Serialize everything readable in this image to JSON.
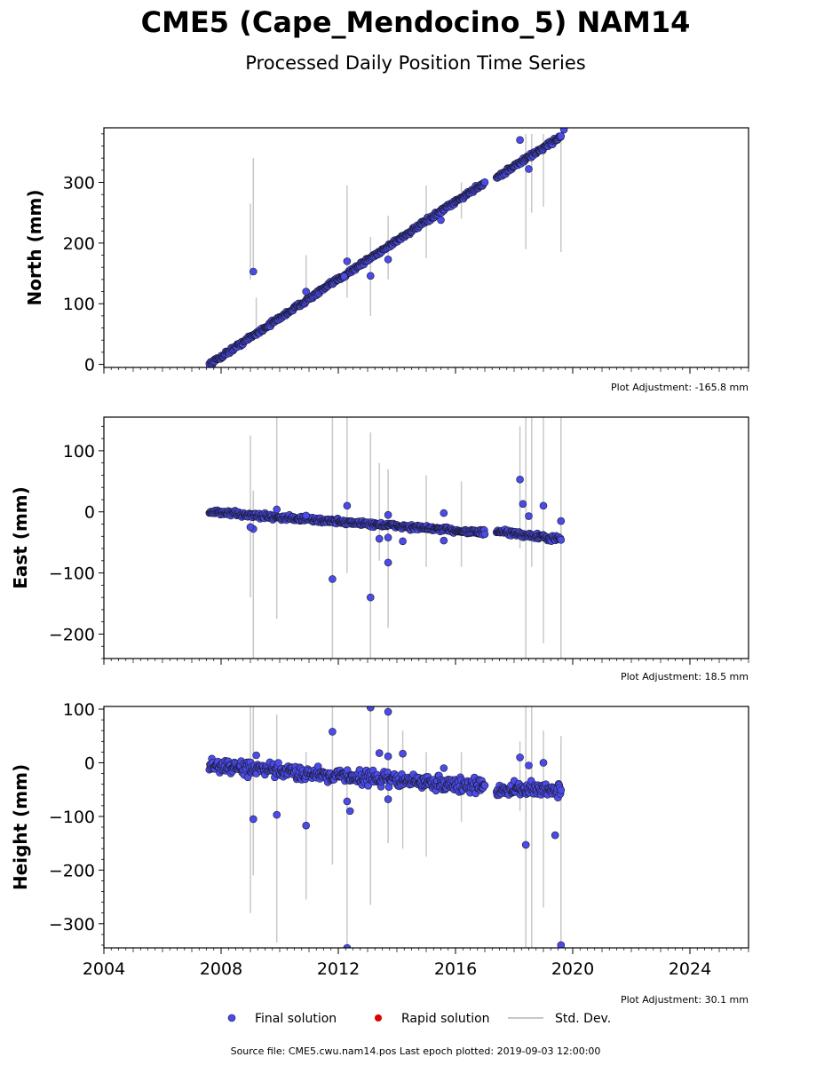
{
  "title": "CME5 (Cape_Mendocino_5) NAM14",
  "subtitle": "Processed Daily Position Time Series",
  "source_note": "Source file: CME5.cwu.nam14.pos  Last epoch plotted: 2019-09-03 12:00:00",
  "legend": {
    "final_label": "Final solution",
    "rapid_label": "Rapid solution",
    "std_label": "Std. Dev."
  },
  "colors": {
    "final": "#4b4bea",
    "final_edge": "#1a1a2e",
    "rapid": "#dd0000",
    "std": "#c8c8c8"
  },
  "chart_data": [
    {
      "type": "scatter",
      "ylabel": "North (mm)",
      "adjustment": "Plot Adjustment: -165.8 mm",
      "xlim": [
        2004,
        2026
      ],
      "ylim": [
        -5,
        390
      ],
      "yticks": [
        0,
        100,
        200,
        300
      ],
      "ytick_labels": [
        "0",
        "100",
        "200",
        "300"
      ],
      "series": [
        {
          "name": "Final solution",
          "trend": [
            [
              2007.6,
              0
            ],
            [
              2017.0,
              300
            ],
            [
              2017.4,
              308
            ],
            [
              2019.6,
              376
            ]
          ],
          "gap": [
            2017.0,
            2017.4
          ]
        }
      ],
      "outliers": [
        [
          2009.1,
          153
        ],
        [
          2010.9,
          120
        ],
        [
          2012.3,
          170
        ],
        [
          2012.2,
          145
        ],
        [
          2013.1,
          146
        ],
        [
          2013.7,
          173
        ],
        [
          2015.5,
          238
        ],
        [
          2018.2,
          370
        ],
        [
          2018.5,
          322
        ],
        [
          2019.7,
          387
        ]
      ],
      "error_bars": [
        [
          2009.0,
          140,
          265
        ],
        [
          2009.1,
          150,
          340
        ],
        [
          2009.2,
          45,
          110
        ],
        [
          2010.9,
          110,
          180
        ],
        [
          2012.3,
          110,
          295
        ],
        [
          2013.1,
          80,
          210
        ],
        [
          2013.7,
          140,
          245
        ],
        [
          2015.0,
          175,
          295
        ],
        [
          2016.2,
          240,
          300
        ],
        [
          2018.4,
          190,
          380
        ],
        [
          2018.6,
          250,
          380
        ],
        [
          2019.0,
          260,
          380
        ],
        [
          2019.6,
          185,
          380
        ]
      ]
    },
    {
      "type": "scatter",
      "ylabel": "East (mm)",
      "adjustment": "Plot Adjustment: 18.5 mm",
      "xlim": [
        2004,
        2026
      ],
      "ylim": [
        -240,
        155
      ],
      "yticks": [
        -200,
        -100,
        0,
        100
      ],
      "ytick_labels": [
        "−200",
        "−100",
        "0",
        "100"
      ],
      "series": [
        {
          "name": "Final solution",
          "trend": [
            [
              2007.6,
              0
            ],
            [
              2017.0,
              -34
            ],
            [
              2017.4,
              -32
            ],
            [
              2019.6,
              -45
            ]
          ],
          "gap": [
            2017.0,
            2017.4
          ]
        }
      ],
      "outliers": [
        [
          2009.1,
          -28
        ],
        [
          2009.0,
          -25
        ],
        [
          2009.9,
          4
        ],
        [
          2010.9,
          -6
        ],
        [
          2011.8,
          -110
        ],
        [
          2012.3,
          10
        ],
        [
          2013.1,
          -140
        ],
        [
          2013.4,
          -44
        ],
        [
          2013.7,
          -5
        ],
        [
          2013.7,
          -42
        ],
        [
          2013.7,
          -83
        ],
        [
          2014.2,
          -48
        ],
        [
          2015.6,
          -2
        ],
        [
          2015.6,
          -47
        ],
        [
          2018.2,
          53
        ],
        [
          2018.3,
          13
        ],
        [
          2018.5,
          -7
        ],
        [
          2019.0,
          10
        ],
        [
          2019.6,
          -15
        ]
      ],
      "error_bars": [
        [
          2009.0,
          -140,
          125
        ],
        [
          2009.1,
          -240,
          35
        ],
        [
          2009.9,
          -175,
          155
        ],
        [
          2011.8,
          -240,
          155
        ],
        [
          2012.3,
          -100,
          155
        ],
        [
          2013.1,
          -240,
          130
        ],
        [
          2013.4,
          -80,
          80
        ],
        [
          2013.7,
          -190,
          70
        ],
        [
          2015.0,
          -90,
          60
        ],
        [
          2016.2,
          -90,
          50
        ],
        [
          2018.2,
          -60,
          140
        ],
        [
          2018.4,
          -240,
          155
        ],
        [
          2018.6,
          -90,
          155
        ],
        [
          2019.0,
          -215,
          155
        ],
        [
          2019.6,
          -240,
          155
        ]
      ]
    },
    {
      "type": "scatter",
      "ylabel": "Height (mm)",
      "adjustment": "Plot Adjustment: 30.1 mm",
      "xlim": [
        2004,
        2026
      ],
      "ylim": [
        -345,
        105
      ],
      "yticks": [
        -300,
        -200,
        -100,
        0,
        100
      ],
      "ytick_labels": [
        "−300",
        "−200",
        "−100",
        "0",
        "100"
      ],
      "xticks": [
        2004,
        2008,
        2012,
        2016,
        2020,
        2024
      ],
      "xtick_labels": [
        "2004",
        "2008",
        "2012",
        "2016",
        "2020",
        "2024"
      ],
      "series": [
        {
          "name": "Final solution",
          "trend": [
            [
              2007.6,
              -5
            ],
            [
              2017.0,
              -45
            ],
            [
              2017.4,
              -50
            ],
            [
              2019.6,
              -50
            ]
          ],
          "gap": [
            2017.0,
            2017.4
          ]
        }
      ],
      "outliers": [
        [
          2009.1,
          -105
        ],
        [
          2009.2,
          14
        ],
        [
          2009.9,
          -97
        ],
        [
          2010.9,
          -117
        ],
        [
          2011.8,
          58
        ],
        [
          2012.3,
          -345
        ],
        [
          2012.4,
          -90
        ],
        [
          2012.3,
          -72
        ],
        [
          2013.1,
          103
        ],
        [
          2013.4,
          18
        ],
        [
          2013.7,
          95
        ],
        [
          2013.7,
          12
        ],
        [
          2013.7,
          -68
        ],
        [
          2014.2,
          17
        ],
        [
          2015.6,
          -10
        ],
        [
          2018.2,
          10
        ],
        [
          2018.4,
          -153
        ],
        [
          2018.5,
          -5
        ],
        [
          2019.0,
          0
        ],
        [
          2019.4,
          -135
        ],
        [
          2019.6,
          -340
        ]
      ],
      "error_bars": [
        [
          2009.0,
          -280,
          105
        ],
        [
          2009.1,
          -210,
          105
        ],
        [
          2009.9,
          -335,
          90
        ],
        [
          2010.9,
          -255,
          20
        ],
        [
          2011.8,
          -190,
          105
        ],
        [
          2012.3,
          -345,
          -10
        ],
        [
          2013.1,
          -265,
          105
        ],
        [
          2013.7,
          -150,
          105
        ],
        [
          2014.2,
          -160,
          60
        ],
        [
          2015.0,
          -175,
          20
        ],
        [
          2016.2,
          -110,
          20
        ],
        [
          2018.2,
          -90,
          40
        ],
        [
          2018.4,
          -345,
          105
        ],
        [
          2018.6,
          -345,
          105
        ],
        [
          2019.0,
          -270,
          60
        ],
        [
          2019.6,
          -345,
          50
        ]
      ]
    }
  ]
}
